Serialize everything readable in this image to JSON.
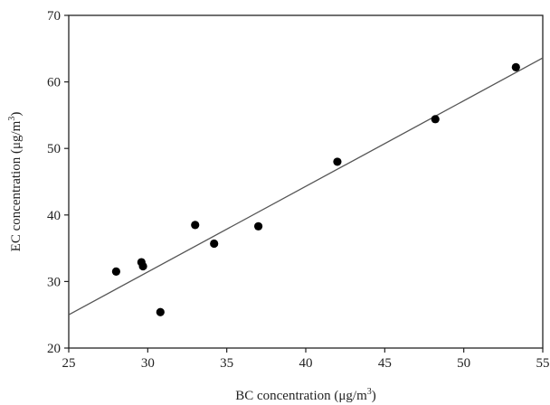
{
  "chart_data": {
    "type": "scatter",
    "title": "",
    "xlabel": {
      "text": "BC concentration (μg/m",
      "sup": "3",
      "close": ")"
    },
    "ylabel": {
      "text": "EC concentration (μg/m",
      "sup": "3",
      "close": ")"
    },
    "xlim": [
      25,
      55
    ],
    "ylim": [
      20,
      70
    ],
    "xticks": [
      "25",
      "30",
      "35",
      "40",
      "45",
      "50",
      "55"
    ],
    "yticks": [
      "20",
      "30",
      "40",
      "50",
      "60",
      "70"
    ],
    "grid": false,
    "legend": "none",
    "points": [
      {
        "x": 28.0,
        "y": 31.5
      },
      {
        "x": 29.6,
        "y": 32.9
      },
      {
        "x": 29.7,
        "y": 32.3
      },
      {
        "x": 30.8,
        "y": 25.4
      },
      {
        "x": 33.0,
        "y": 38.5
      },
      {
        "x": 34.2,
        "y": 35.7
      },
      {
        "x": 37.0,
        "y": 38.3
      },
      {
        "x": 42.0,
        "y": 48.0
      },
      {
        "x": 48.2,
        "y": 54.4
      },
      {
        "x": 53.3,
        "y": 62.2
      }
    ],
    "fit_line": {
      "x": [
        25,
        55
      ],
      "y": [
        25.0,
        63.6
      ]
    },
    "colors": {
      "marker": "#000000",
      "fit_line": "#555555",
      "axis": "#222222"
    }
  }
}
